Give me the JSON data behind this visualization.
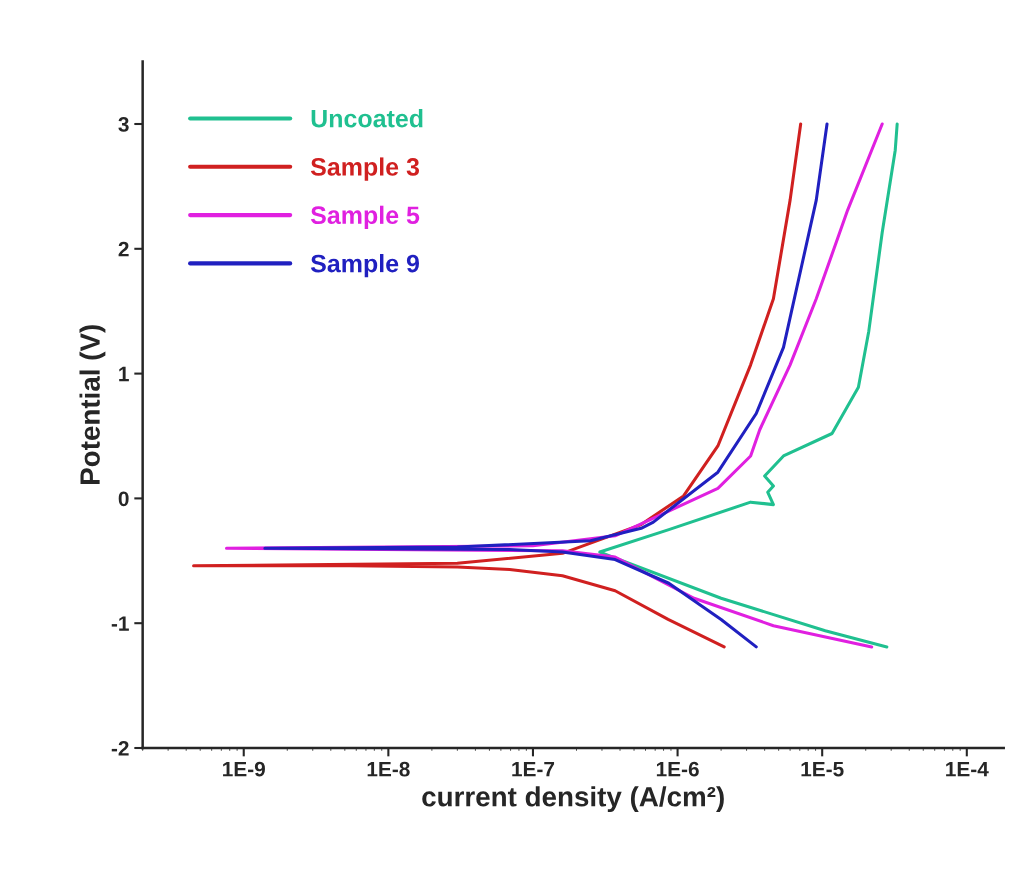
{
  "chart_data": {
    "type": "line",
    "xlabel": "current density (A/cm²)",
    "ylabel": "Potential (V)",
    "log": "x",
    "grid": false,
    "legend": "top left",
    "xlim": [
      2e-10,
      0.00018
    ],
    "ylim": [
      -2,
      3.5
    ],
    "xticks": [
      {
        "value": 1e-09,
        "label": "1E-9"
      },
      {
        "value": 1e-08,
        "label": "1E-8"
      },
      {
        "value": 1e-07,
        "label": "1E-7"
      },
      {
        "value": 1e-06,
        "label": "1E-6"
      },
      {
        "value": 1e-05,
        "label": "1E-5"
      },
      {
        "value": 0.0001,
        "label": "1E-4"
      }
    ],
    "yticks": [
      -2,
      -1,
      0,
      1,
      2,
      3
    ],
    "series": [
      {
        "name": "Uncoated",
        "color": "#20c090",
        "x": [
          2.8e-05,
          1.05e-05,
          2e-06,
          2.9e-07,
          8.7e-07,
          3.2e-06,
          4.6e-06,
          4.2e-06,
          4.6e-06,
          4e-06,
          5.4e-06,
          1.17e-05,
          1.78e-05,
          2.1e-05,
          2.6e-05,
          3.2e-05,
          3.3e-05
        ],
        "values": [
          -1.19,
          -1.06,
          -0.8,
          -0.43,
          -0.25,
          -0.03,
          -0.05,
          0.05,
          0.1,
          0.18,
          0.34,
          0.52,
          0.89,
          1.34,
          2.13,
          2.79,
          3.0
        ]
      },
      {
        "name": "Sample 3",
        "color": "#d02020",
        "x": [
          2.1e-06,
          8.6e-07,
          3.7e-07,
          1.6e-07,
          6.9e-08,
          3e-08,
          5.4e-09,
          4.5e-10,
          3e-08,
          1.6e-07,
          5.6e-07,
          1.1e-06,
          1.9e-06,
          3.2e-06,
          4.6e-06,
          6e-06,
          7.1e-06
        ],
        "values": [
          -1.19,
          -0.97,
          -0.74,
          -0.62,
          -0.57,
          -0.55,
          -0.54,
          -0.54,
          -0.52,
          -0.44,
          -0.21,
          0.02,
          0.42,
          1.07,
          1.6,
          2.39,
          3.0
        ]
      },
      {
        "name": "Sample 5",
        "color": "#e020e0",
        "x": [
          2.2e-05,
          4.6e-06,
          1.3e-06,
          3.7e-07,
          1.6e-07,
          7.6e-10,
          1e-07,
          3.7e-07,
          1.9e-06,
          3.2e-06,
          3.7e-06,
          6e-06,
          9.1e-06,
          1.5e-05,
          2.6e-05
        ],
        "values": [
          -1.19,
          -1.02,
          -0.8,
          -0.47,
          -0.42,
          -0.4,
          -0.38,
          -0.3,
          0.08,
          0.34,
          0.55,
          1.07,
          1.6,
          2.31,
          3.0
        ]
      },
      {
        "name": "Sample 9",
        "color": "#2020c0",
        "x": [
          3.5e-06,
          2e-06,
          8.7e-07,
          3.7e-07,
          1.6e-07,
          6.9e-08,
          1.4e-09,
          3e-08,
          2.5e-07,
          5.6e-07,
          6.8e-07,
          1.9e-06,
          3.5e-06,
          5.4e-06,
          7.2e-06,
          9.1e-06,
          1.08e-05
        ],
        "values": [
          -1.19,
          -0.97,
          -0.68,
          -0.49,
          -0.43,
          -0.41,
          -0.4,
          -0.39,
          -0.34,
          -0.24,
          -0.19,
          0.21,
          0.68,
          1.21,
          1.86,
          2.39,
          3.0
        ]
      }
    ]
  }
}
